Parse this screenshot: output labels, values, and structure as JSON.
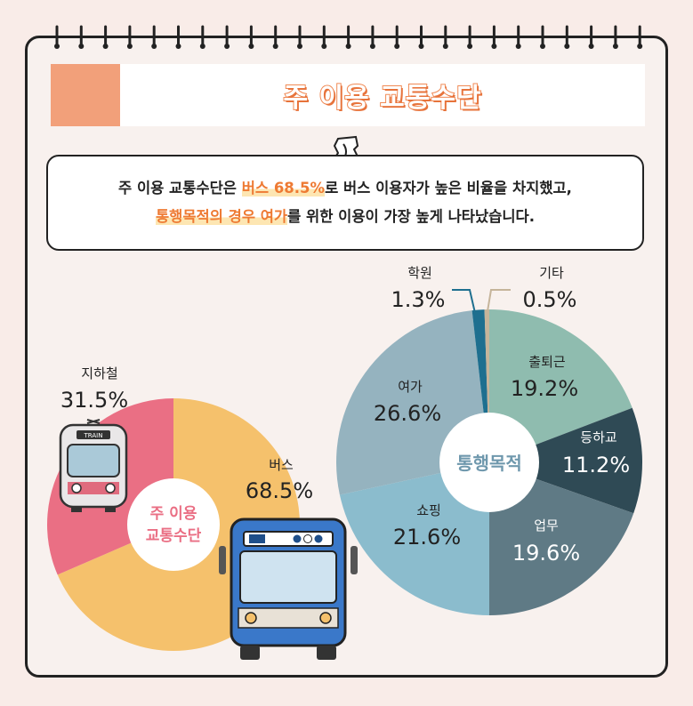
{
  "title": "주 이용 교통수단",
  "summary": {
    "line1_pre": "주 이용 교통수단은 ",
    "line1_hl": "버스 68.5%",
    "line1_post": "로 버스 이용자가 높은 비율을 차지했고,",
    "line2_hl": "통행목적의 경우 여가",
    "line2_post": "를 위한 이용이 가장 높게 나타났습니다."
  },
  "bus_label": "TRAIN",
  "chart_data": [
    {
      "type": "pie",
      "title": "주 이용 교통수단",
      "categories": [
        "버스",
        "지하철"
      ],
      "values": [
        68.5,
        31.5
      ],
      "value_labels": [
        "68.5%",
        "31.5%"
      ],
      "colors": [
        "#f5c16c",
        "#ea6f84"
      ]
    },
    {
      "type": "pie",
      "title": "통행목적",
      "categories": [
        "출퇴근",
        "등하교",
        "업무",
        "쇼핑",
        "여가",
        "학원",
        "기타"
      ],
      "values": [
        19.2,
        11.2,
        19.6,
        21.6,
        26.6,
        1.3,
        0.5
      ],
      "value_labels": [
        "19.2%",
        "11.2%",
        "19.6%",
        "21.6%",
        "26.6%",
        "1.3%",
        "0.5%"
      ],
      "colors": [
        "#8fbcaf",
        "#2f4a55",
        "#5f7a85",
        "#8bbccd",
        "#95b3bf",
        "#1e6f8f",
        "#c5b49a"
      ]
    }
  ]
}
